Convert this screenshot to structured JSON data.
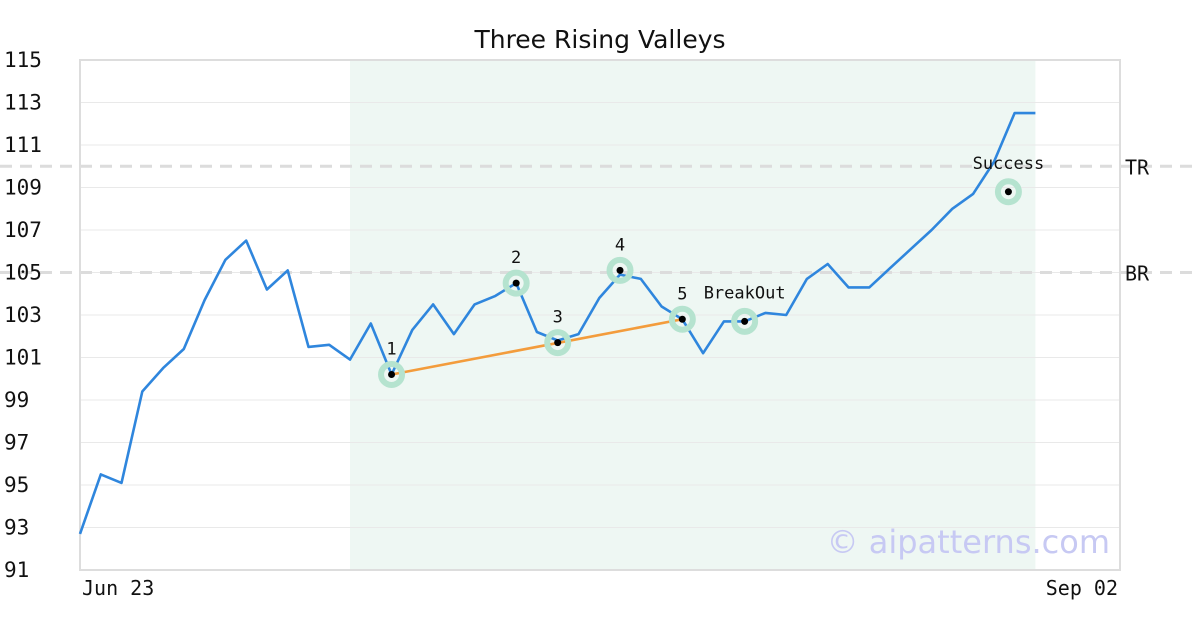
{
  "chart_data": {
    "type": "line",
    "title": "Three Rising Valleys",
    "ylim": [
      91,
      115
    ],
    "y_ticks": [
      "115",
      "113",
      "111",
      "109",
      "107",
      "105",
      "103",
      "101",
      "99",
      "97",
      "95",
      "93",
      "91"
    ],
    "x_labels": [
      "Jun 23",
      "Sep 02"
    ],
    "grid": true,
    "pattern_range": {
      "start_index": 13,
      "end_index": 46
    },
    "series": [
      {
        "color": "#2f86dd",
        "values": [
          92.7,
          95.5,
          95.1,
          99.4,
          100.5,
          101.4,
          103.7,
          105.6,
          106.5,
          104.2,
          105.1,
          101.5,
          101.6,
          100.9,
          102.6,
          100.2,
          102.3,
          103.5,
          102.1,
          103.5,
          103.9,
          104.5,
          102.2,
          101.8,
          102.1,
          103.8,
          104.9,
          104.7,
          103.4,
          102.8,
          101.2,
          102.7,
          102.7,
          103.1,
          103.0,
          104.7,
          105.4,
          104.3,
          104.3,
          105.2,
          106.1,
          107.0,
          108.0,
          108.7,
          110.2,
          112.5,
          112.5
        ]
      }
    ],
    "levels": [
      {
        "label": "TR",
        "value": 110.0
      },
      {
        "label": "BR",
        "value": 105.0
      }
    ],
    "trendline": {
      "color": "#f39c3c",
      "points": [
        [
          15,
          100.2
        ],
        [
          29,
          102.8
        ]
      ]
    },
    "markers": [
      {
        "label": "1",
        "x": 15,
        "y": 100.2
      },
      {
        "label": "2",
        "x": 21,
        "y": 104.5
      },
      {
        "label": "3",
        "x": 23,
        "y": 101.7
      },
      {
        "label": "4",
        "x": 26,
        "y": 105.1
      },
      {
        "label": "5",
        "x": 29,
        "y": 102.8
      },
      {
        "label": "BreakOut",
        "x": 32,
        "y": 102.7
      },
      {
        "label": "Success",
        "x": 44.7,
        "y": 108.8
      }
    ],
    "watermark": "© aipatterns.com"
  }
}
